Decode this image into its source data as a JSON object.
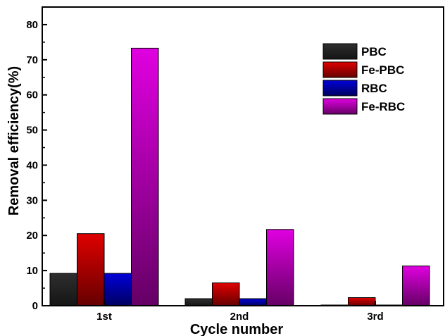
{
  "chart_data": {
    "type": "bar",
    "categories": [
      "1st",
      "2nd",
      "3rd"
    ],
    "series": [
      {
        "name": "PBC",
        "values": [
          9.2,
          2.0,
          0.2
        ],
        "color": "#2e2e2e"
      },
      {
        "name": "Fe-PBC",
        "values": [
          20.5,
          6.5,
          2.3
        ],
        "color": "#e00000"
      },
      {
        "name": "RBC",
        "values": [
          9.2,
          2.0,
          0.2
        ],
        "color": "#0000d8"
      },
      {
        "name": "Fe-RBC",
        "values": [
          73.3,
          21.7,
          11.3
        ],
        "color": "#e000e0"
      }
    ],
    "xlabel": "Cycle number",
    "ylabel": "Removal efficiency(%)",
    "ylim": [
      0,
      85
    ],
    "yticks": [
      0,
      10,
      20,
      30,
      40,
      50,
      60,
      70,
      80
    ],
    "grid": false,
    "legend_position": "top-right"
  }
}
